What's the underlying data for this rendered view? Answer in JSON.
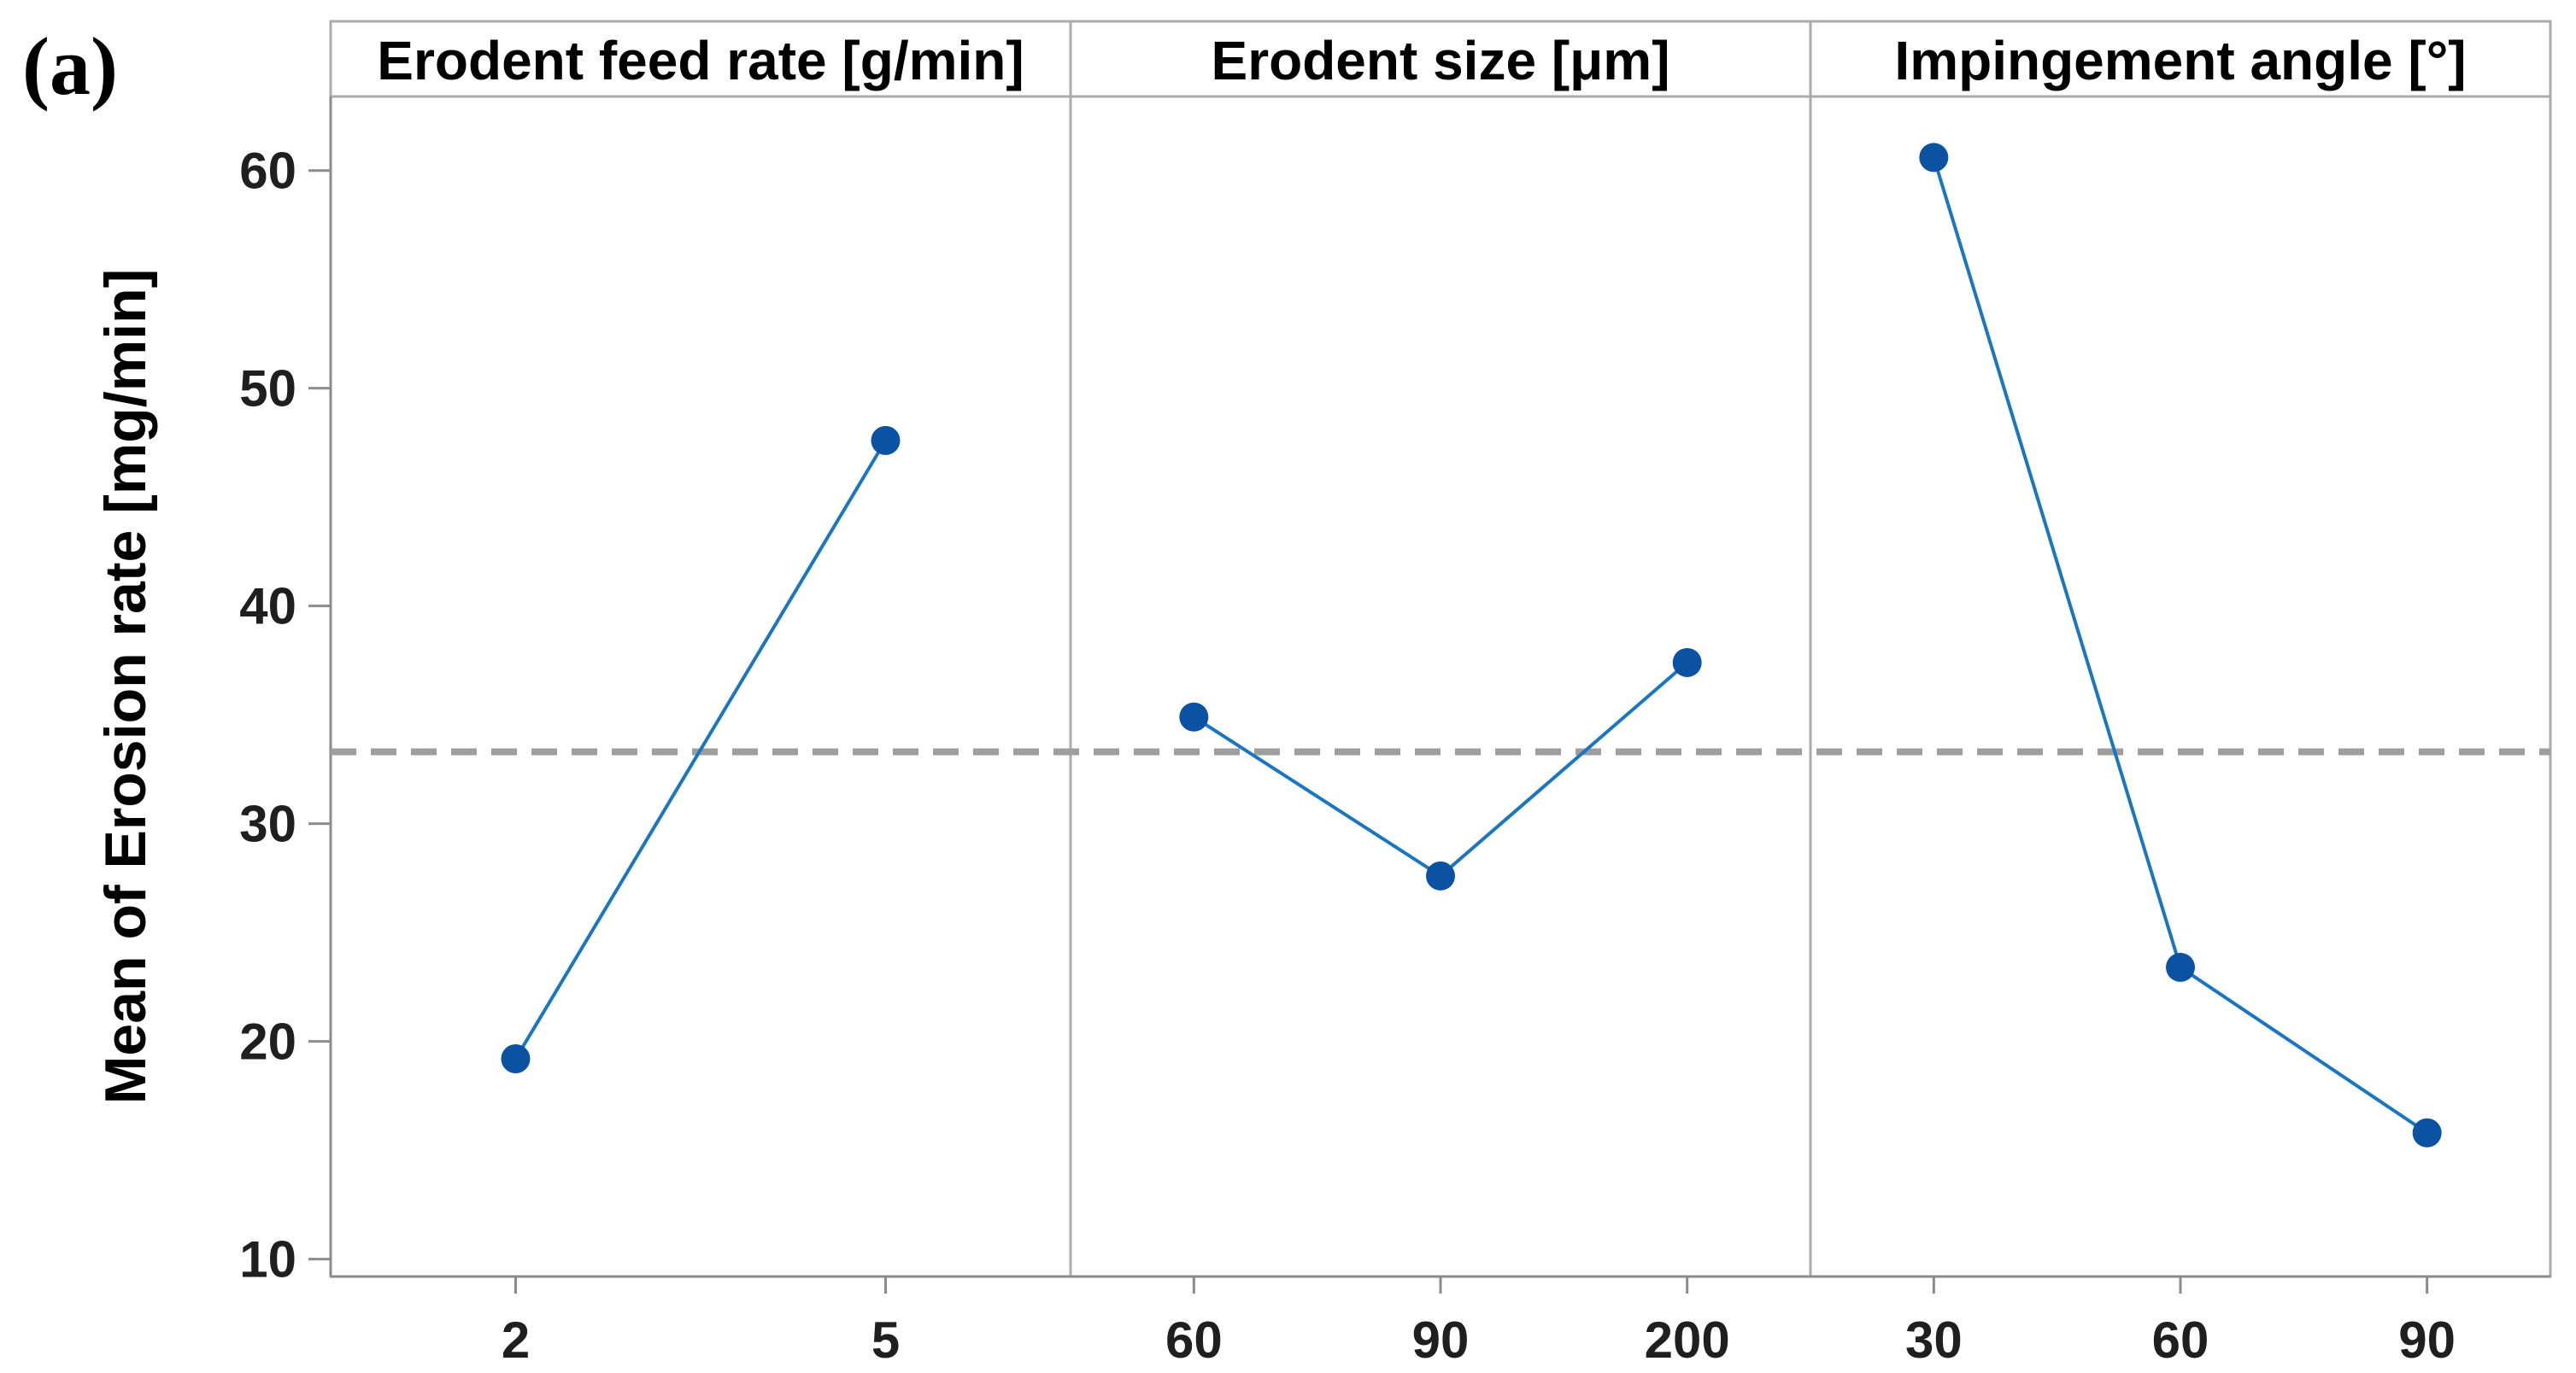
{
  "figure_label": "(a)",
  "colors": {
    "marker": "#0b52a3",
    "line": "#1b76c2",
    "reference": "#9e9e9e",
    "axis": "#8b8b8b",
    "border": "#ababab",
    "header_text": "#000000",
    "tick_text": "#1f1f1f",
    "background": "#ffffff"
  },
  "chart_data": {
    "type": "line",
    "ylabel": "Mean of Erosion rate [mg/min]",
    "ylim": [
      9.2,
      63.4
    ],
    "yticks": [
      10,
      20,
      30,
      40,
      50,
      60
    ],
    "grid": false,
    "reference_line": 33.3,
    "legend": "none",
    "panels": [
      {
        "title": "Erodent feed rate [g/min]",
        "categories": [
          "2",
          "5"
        ],
        "values": [
          19.2,
          47.6
        ]
      },
      {
        "title": "Erodent size [μm]",
        "categories": [
          "60",
          "90",
          "200"
        ],
        "values": [
          34.9,
          27.6,
          37.4
        ]
      },
      {
        "title": "Impingement angle [°]",
        "categories": [
          "30",
          "60",
          "90"
        ],
        "values": [
          60.6,
          23.4,
          15.8
        ]
      }
    ]
  }
}
